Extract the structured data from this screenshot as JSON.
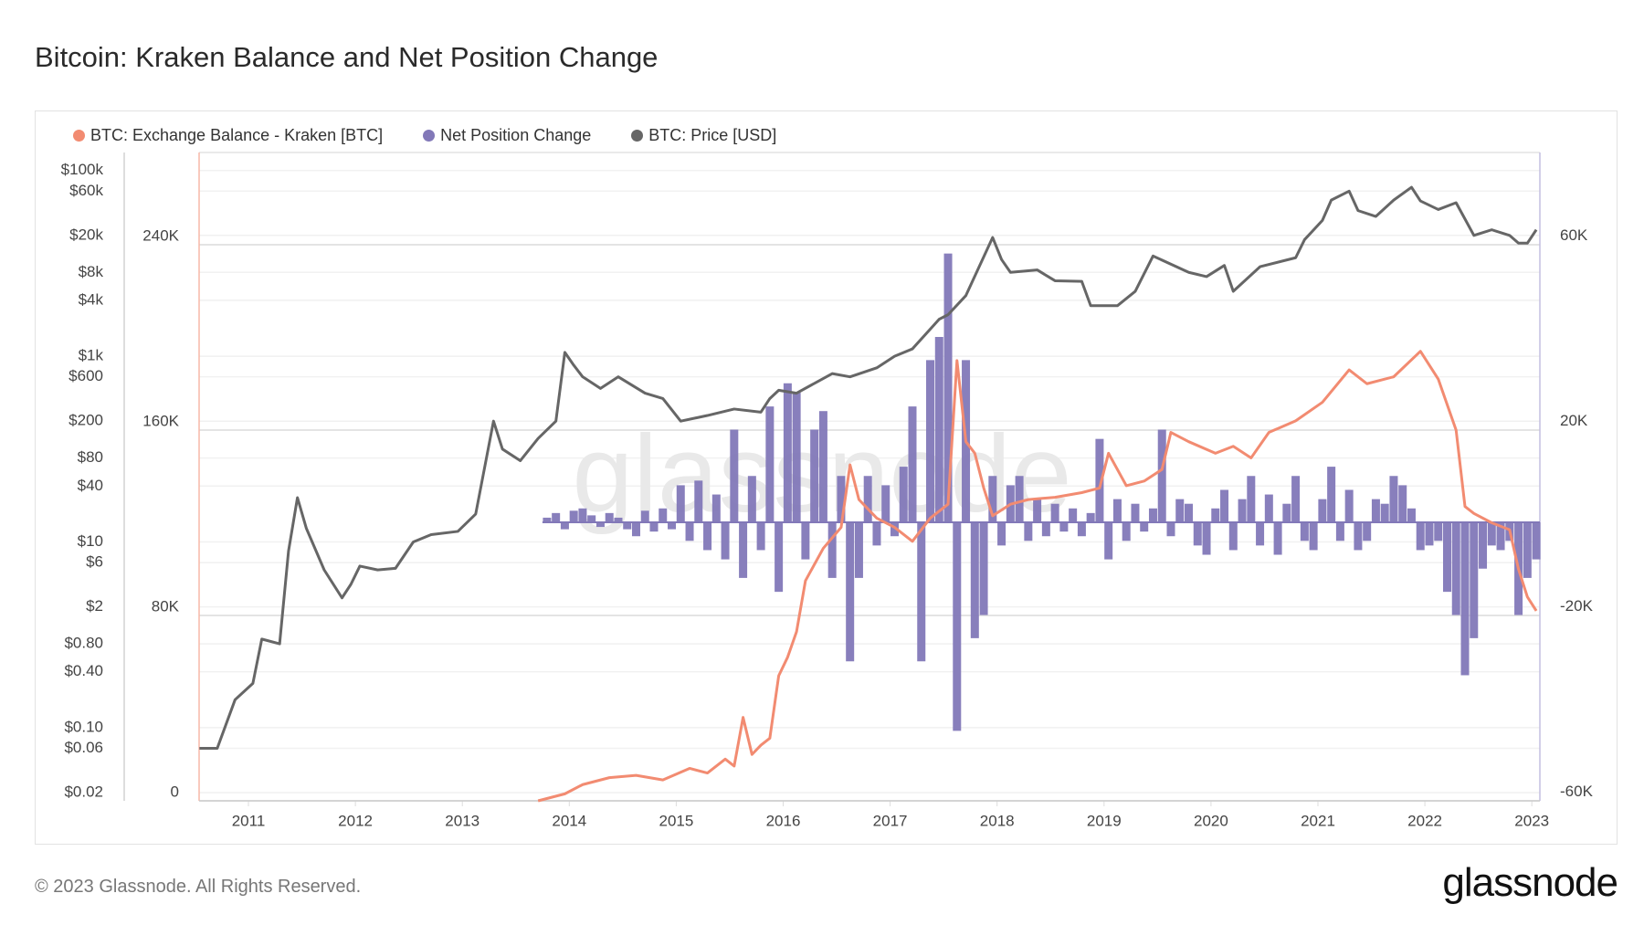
{
  "header": {
    "title": "Bitcoin: Kraken Balance and Net Position Change"
  },
  "footer": {
    "copyright": "© 2023 Glassnode. All Rights Reserved.",
    "logo": "glassnode"
  },
  "chart_data": {
    "type": "line",
    "title": "Bitcoin: Kraken Balance and Net Position Change",
    "watermark": "glassnode",
    "legend_position": "top-left",
    "grid": true,
    "x_ticks": [
      "2011",
      "2012",
      "2013",
      "2014",
      "2015",
      "2016",
      "2017",
      "2018",
      "2019",
      "2020",
      "2021",
      "2022",
      "2023"
    ],
    "x_range": [
      "2010-07",
      "2023-02"
    ],
    "price_axis": {
      "side": "left-outer",
      "scale": "log",
      "range": [
        0.02,
        100000
      ],
      "ticks": [
        {
          "v": 100000,
          "l": "$100k"
        },
        {
          "v": 60000,
          "l": "$60k"
        },
        {
          "v": 20000,
          "l": "$20k"
        },
        {
          "v": 8000,
          "l": "$8k"
        },
        {
          "v": 4000,
          "l": "$4k"
        },
        {
          "v": 1000,
          "l": "$1k"
        },
        {
          "v": 600,
          "l": "$600"
        },
        {
          "v": 200,
          "l": "$200"
        },
        {
          "v": 80,
          "l": "$80"
        },
        {
          "v": 40,
          "l": "$40"
        },
        {
          "v": 10,
          "l": "$10"
        },
        {
          "v": 6,
          "l": "$6"
        },
        {
          "v": 2,
          "l": "$2"
        },
        {
          "v": 0.8,
          "l": "$0.80"
        },
        {
          "v": 0.4,
          "l": "$0.40"
        },
        {
          "v": 0.1,
          "l": "$0.10"
        },
        {
          "v": 0.06,
          "l": "$0.06"
        },
        {
          "v": 0.02,
          "l": "$0.02"
        }
      ]
    },
    "balance_axis": {
      "side": "left-inner",
      "range": [
        0,
        280000
      ],
      "ticks": [
        {
          "v": 0,
          "l": "0"
        },
        {
          "v": 80000,
          "l": "80K"
        },
        {
          "v": 160000,
          "l": "160K"
        },
        {
          "v": 240000,
          "l": "240K"
        }
      ]
    },
    "net_axis": {
      "side": "right",
      "range": [
        -60000,
        70000
      ],
      "ticks": [
        {
          "v": -60000,
          "l": "-60K"
        },
        {
          "v": -20000,
          "l": "-20K"
        },
        {
          "v": 20000,
          "l": "20K"
        },
        {
          "v": 60000,
          "l": "60K"
        }
      ]
    },
    "series": [
      {
        "name": "BTC: Exchange Balance - Kraken [BTC]",
        "color": "#f28b71",
        "type": "line",
        "axis": "balance",
        "points": [
          [
            "2013-09",
            0
          ],
          [
            "2013-12",
            3000
          ],
          [
            "2014-02",
            7000
          ],
          [
            "2014-05",
            10000
          ],
          [
            "2014-08",
            11000
          ],
          [
            "2014-11",
            9000
          ],
          [
            "2015-02",
            14000
          ],
          [
            "2015-04",
            12000
          ],
          [
            "2015-06",
            18000
          ],
          [
            "2015-07",
            15000
          ],
          [
            "2015-08",
            36000
          ],
          [
            "2015-09",
            20000
          ],
          [
            "2015-10",
            24000
          ],
          [
            "2015-11",
            27000
          ],
          [
            "2015-12",
            54000
          ],
          [
            "2016-01",
            62000
          ],
          [
            "2016-02",
            73000
          ],
          [
            "2016-03",
            95000
          ],
          [
            "2016-05",
            109000
          ],
          [
            "2016-07",
            118000
          ],
          [
            "2016-08",
            145000
          ],
          [
            "2016-09",
            130000
          ],
          [
            "2016-11",
            122000
          ],
          [
            "2017-01",
            118000
          ],
          [
            "2017-03",
            112000
          ],
          [
            "2017-05",
            122000
          ],
          [
            "2017-07",
            128000
          ],
          [
            "2017-08",
            190000
          ],
          [
            "2017-09",
            155000
          ],
          [
            "2017-10",
            150000
          ],
          [
            "2017-11",
            135000
          ],
          [
            "2017-12",
            123000
          ],
          [
            "2018-02",
            128000
          ],
          [
            "2018-04",
            130000
          ],
          [
            "2018-07",
            131000
          ],
          [
            "2018-10",
            133000
          ],
          [
            "2018-12",
            135000
          ],
          [
            "2019-01",
            150000
          ],
          [
            "2019-03",
            136000
          ],
          [
            "2019-05",
            138000
          ],
          [
            "2019-07",
            143000
          ],
          [
            "2019-08",
            159000
          ],
          [
            "2019-10",
            155000
          ],
          [
            "2020-01",
            150000
          ],
          [
            "2020-03",
            153000
          ],
          [
            "2020-05",
            148000
          ],
          [
            "2020-07",
            159000
          ],
          [
            "2020-10",
            164000
          ],
          [
            "2021-01",
            172000
          ],
          [
            "2021-04",
            186000
          ],
          [
            "2021-06",
            180000
          ],
          [
            "2021-09",
            183000
          ],
          [
            "2021-12",
            194000
          ],
          [
            "2022-02",
            182000
          ],
          [
            "2022-04",
            160000
          ],
          [
            "2022-05",
            127000
          ],
          [
            "2022-06",
            124000
          ],
          [
            "2022-08",
            120000
          ],
          [
            "2022-10",
            117000
          ],
          [
            "2022-11",
            100000
          ],
          [
            "2022-12",
            88000
          ],
          [
            "2023-01",
            82000
          ]
        ]
      },
      {
        "name": "Net Position Change",
        "color": "#8278b8",
        "type": "bar",
        "axis": "net",
        "points": [
          [
            "2013-10",
            1000
          ],
          [
            "2013-11",
            2000
          ],
          [
            "2013-12",
            -1500
          ],
          [
            "2014-01",
            2500
          ],
          [
            "2014-02",
            3000
          ],
          [
            "2014-03",
            1500
          ],
          [
            "2014-04",
            -1000
          ],
          [
            "2014-05",
            2000
          ],
          [
            "2014-06",
            1000
          ],
          [
            "2014-07",
            -1500
          ],
          [
            "2014-08",
            -3000
          ],
          [
            "2014-09",
            2500
          ],
          [
            "2014-10",
            -2000
          ],
          [
            "2014-11",
            3000
          ],
          [
            "2014-12",
            -1500
          ],
          [
            "2015-01",
            8000
          ],
          [
            "2015-02",
            -4000
          ],
          [
            "2015-03",
            9000
          ],
          [
            "2015-04",
            -6000
          ],
          [
            "2015-05",
            6000
          ],
          [
            "2015-06",
            -8000
          ],
          [
            "2015-07",
            20000
          ],
          [
            "2015-08",
            -12000
          ],
          [
            "2015-09",
            10000
          ],
          [
            "2015-10",
            -6000
          ],
          [
            "2015-11",
            25000
          ],
          [
            "2015-12",
            -15000
          ],
          [
            "2016-01",
            30000
          ],
          [
            "2016-02",
            28000
          ],
          [
            "2016-03",
            -8000
          ],
          [
            "2016-04",
            20000
          ],
          [
            "2016-05",
            24000
          ],
          [
            "2016-06",
            -12000
          ],
          [
            "2016-07",
            10000
          ],
          [
            "2016-08",
            -30000
          ],
          [
            "2016-09",
            -12000
          ],
          [
            "2016-10",
            10000
          ],
          [
            "2016-11",
            -5000
          ],
          [
            "2016-12",
            8000
          ],
          [
            "2017-01",
            -3000
          ],
          [
            "2017-02",
            12000
          ],
          [
            "2017-03",
            25000
          ],
          [
            "2017-04",
            -30000
          ],
          [
            "2017-05",
            35000
          ],
          [
            "2017-06",
            40000
          ],
          [
            "2017-07",
            58000
          ],
          [
            "2017-08",
            -45000
          ],
          [
            "2017-09",
            35000
          ],
          [
            "2017-10",
            -25000
          ],
          [
            "2017-11",
            -20000
          ],
          [
            "2017-12",
            10000
          ],
          [
            "2018-01",
            -5000
          ],
          [
            "2018-02",
            8000
          ],
          [
            "2018-03",
            10000
          ],
          [
            "2018-04",
            -4000
          ],
          [
            "2018-05",
            5000
          ],
          [
            "2018-06",
            -3000
          ],
          [
            "2018-07",
            4000
          ],
          [
            "2018-08",
            -2000
          ],
          [
            "2018-09",
            3000
          ],
          [
            "2018-10",
            -3000
          ],
          [
            "2018-11",
            2000
          ],
          [
            "2018-12",
            18000
          ],
          [
            "2019-01",
            -8000
          ],
          [
            "2019-02",
            5000
          ],
          [
            "2019-03",
            -4000
          ],
          [
            "2019-04",
            4000
          ],
          [
            "2019-05",
            -2000
          ],
          [
            "2019-06",
            3000
          ],
          [
            "2019-07",
            20000
          ],
          [
            "2019-08",
            -3000
          ],
          [
            "2019-09",
            5000
          ],
          [
            "2019-10",
            4000
          ],
          [
            "2019-11",
            -5000
          ],
          [
            "2019-12",
            -7000
          ],
          [
            "2020-01",
            3000
          ],
          [
            "2020-02",
            7000
          ],
          [
            "2020-03",
            -6000
          ],
          [
            "2020-04",
            5000
          ],
          [
            "2020-05",
            10000
          ],
          [
            "2020-06",
            -5000
          ],
          [
            "2020-07",
            6000
          ],
          [
            "2020-08",
            -7000
          ],
          [
            "2020-09",
            4000
          ],
          [
            "2020-10",
            10000
          ],
          [
            "2020-11",
            -4000
          ],
          [
            "2020-12",
            -6000
          ],
          [
            "2021-01",
            5000
          ],
          [
            "2021-02",
            12000
          ],
          [
            "2021-03",
            -4000
          ],
          [
            "2021-04",
            7000
          ],
          [
            "2021-05",
            -6000
          ],
          [
            "2021-06",
            -4000
          ],
          [
            "2021-07",
            5000
          ],
          [
            "2021-08",
            4000
          ],
          [
            "2021-09",
            10000
          ],
          [
            "2021-10",
            8000
          ],
          [
            "2021-11",
            3000
          ],
          [
            "2021-12",
            -6000
          ],
          [
            "2022-01",
            -5000
          ],
          [
            "2022-02",
            -4000
          ],
          [
            "2022-03",
            -15000
          ],
          [
            "2022-04",
            -20000
          ],
          [
            "2022-05",
            -33000
          ],
          [
            "2022-06",
            -25000
          ],
          [
            "2022-07",
            -10000
          ],
          [
            "2022-08",
            -5000
          ],
          [
            "2022-09",
            -6000
          ],
          [
            "2022-10",
            -4000
          ],
          [
            "2022-11",
            -20000
          ],
          [
            "2022-12",
            -12000
          ],
          [
            "2023-01",
            -8000
          ]
        ]
      },
      {
        "name": "BTC: Price [USD]",
        "color": "#666666",
        "type": "line",
        "axis": "price",
        "points": [
          [
            "2010-07",
            0.06
          ],
          [
            "2010-09",
            0.06
          ],
          [
            "2010-11",
            0.2
          ],
          [
            "2011-01",
            0.3
          ],
          [
            "2011-02",
            0.9
          ],
          [
            "2011-04",
            0.8
          ],
          [
            "2011-05",
            8
          ],
          [
            "2011-06",
            30
          ],
          [
            "2011-07",
            14
          ],
          [
            "2011-09",
            5
          ],
          [
            "2011-11",
            2.5
          ],
          [
            "2011-12",
            3.5
          ],
          [
            "2012-01",
            5.5
          ],
          [
            "2012-03",
            5
          ],
          [
            "2012-05",
            5.2
          ],
          [
            "2012-07",
            10
          ],
          [
            "2012-09",
            12
          ],
          [
            "2012-12",
            13
          ],
          [
            "2013-02",
            20
          ],
          [
            "2013-04",
            200
          ],
          [
            "2013-05",
            100
          ],
          [
            "2013-07",
            75
          ],
          [
            "2013-09",
            130
          ],
          [
            "2013-11",
            200
          ],
          [
            "2013-12",
            1100
          ],
          [
            "2014-01",
            800
          ],
          [
            "2014-02",
            600
          ],
          [
            "2014-04",
            450
          ],
          [
            "2014-06",
            600
          ],
          [
            "2014-09",
            400
          ],
          [
            "2014-11",
            350
          ],
          [
            "2015-01",
            200
          ],
          [
            "2015-04",
            230
          ],
          [
            "2015-07",
            270
          ],
          [
            "2015-10",
            250
          ],
          [
            "2015-11",
            350
          ],
          [
            "2015-12",
            430
          ],
          [
            "2016-02",
            400
          ],
          [
            "2016-06",
            650
          ],
          [
            "2016-08",
            600
          ],
          [
            "2016-11",
            750
          ],
          [
            "2017-01",
            1000
          ],
          [
            "2017-03",
            1200
          ],
          [
            "2017-06",
            2500
          ],
          [
            "2017-07",
            2800
          ],
          [
            "2017-09",
            4500
          ],
          [
            "2017-12",
            19000
          ],
          [
            "2018-01",
            11000
          ],
          [
            "2018-02",
            8000
          ],
          [
            "2018-05",
            8500
          ],
          [
            "2018-07",
            6500
          ],
          [
            "2018-10",
            6400
          ],
          [
            "2018-11",
            3500
          ],
          [
            "2019-02",
            3500
          ],
          [
            "2019-04",
            5000
          ],
          [
            "2019-06",
            12000
          ],
          [
            "2019-10",
            8000
          ],
          [
            "2019-12",
            7200
          ],
          [
            "2020-02",
            9500
          ],
          [
            "2020-03",
            5000
          ],
          [
            "2020-06",
            9200
          ],
          [
            "2020-10",
            11500
          ],
          [
            "2020-11",
            18000
          ],
          [
            "2021-01",
            29000
          ],
          [
            "2021-02",
            48000
          ],
          [
            "2021-04",
            60000
          ],
          [
            "2021-05",
            37000
          ],
          [
            "2021-07",
            32000
          ],
          [
            "2021-09",
            48000
          ],
          [
            "2021-11",
            66000
          ],
          [
            "2021-12",
            47000
          ],
          [
            "2022-02",
            38000
          ],
          [
            "2022-04",
            45000
          ],
          [
            "2022-05",
            30000
          ],
          [
            "2022-06",
            20000
          ],
          [
            "2022-08",
            23000
          ],
          [
            "2022-10",
            20000
          ],
          [
            "2022-11",
            16500
          ],
          [
            "2022-12",
            16500
          ],
          [
            "2023-01",
            23000
          ]
        ]
      }
    ]
  }
}
